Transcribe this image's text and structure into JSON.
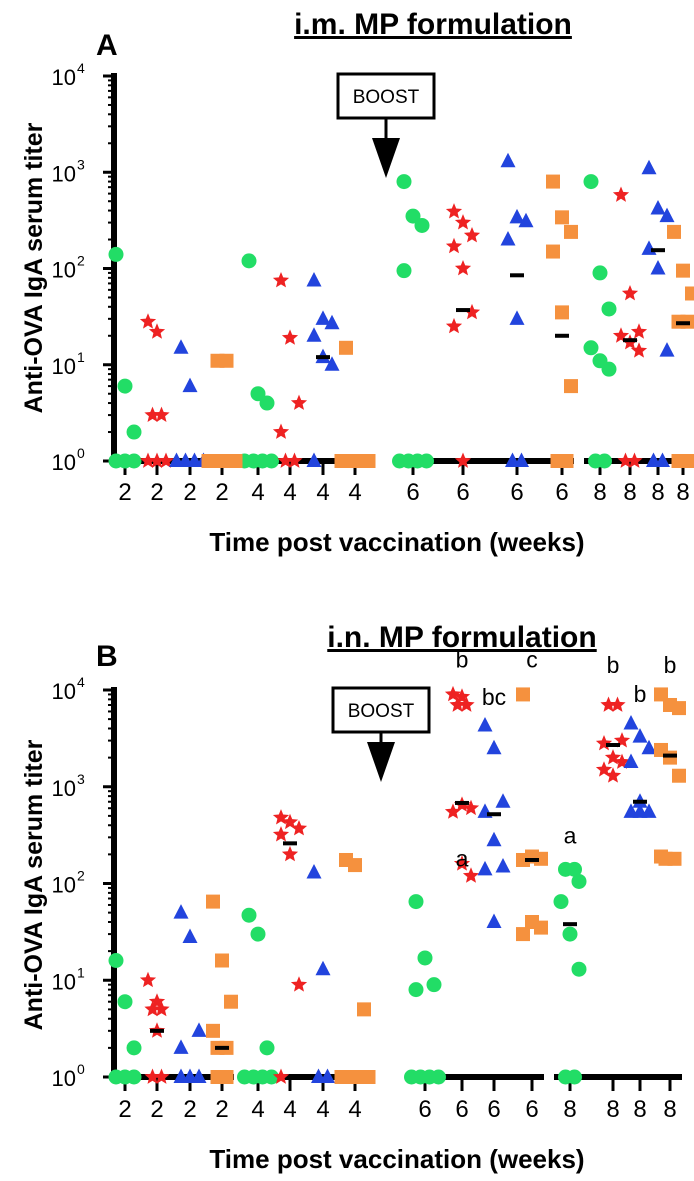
{
  "chart_data": [
    {
      "type": "scatter",
      "panel_label": "A",
      "title": "i.m. MP formulation",
      "ylabel": "Anti-OVA IgA serum titer",
      "xlabel": "Time post vaccination (weeks)",
      "y_scale": "log",
      "ylim": [
        1,
        10000
      ],
      "y_ticks": [
        {
          "base": "10",
          "exp": "0"
        },
        {
          "base": "10",
          "exp": "1"
        },
        {
          "base": "10",
          "exp": "2"
        },
        {
          "base": "10",
          "exp": "3"
        },
        {
          "base": "10",
          "exp": "4"
        }
      ],
      "x_tick_labels": [
        "2",
        "2",
        "2",
        "2",
        "4",
        "4",
        "4",
        "4",
        "6",
        "6",
        "6",
        "6",
        "8",
        "8",
        "8",
        "8"
      ],
      "annotation": {
        "label": "BOOST",
        "between": [
          "4",
          "6"
        ]
      },
      "colors": {
        "circle": "#22dd66",
        "star": "#ee2222",
        "triangle": "#2244dd",
        "square": "#f5913e",
        "median": "#000000"
      },
      "series": [
        {
          "marker": "circle",
          "color": "#22dd66",
          "points": [
            {
              "week": 2,
              "values": [
                140,
                6,
                2,
                1,
                1,
                1
              ]
            },
            {
              "week": 4,
              "values": [
                120,
                5,
                4,
                1,
                1,
                1,
                1
              ]
            },
            {
              "week": 6,
              "values": [
                800,
                350,
                280,
                95,
                1,
                1,
                1,
                1
              ]
            },
            {
              "week": 8,
              "values": [
                800,
                90,
                38,
                15,
                11,
                9,
                1,
                1
              ]
            }
          ],
          "medians": [
            null,
            null,
            null,
            null
          ]
        },
        {
          "marker": "star",
          "color": "#ee2222",
          "points": [
            {
              "week": 2,
              "values": [
                28,
                22,
                3,
                3,
                1,
                1,
                1
              ]
            },
            {
              "week": 4,
              "values": [
                75,
                19,
                4,
                2,
                1,
                1
              ]
            },
            {
              "week": 6,
              "values": [
                390,
                300,
                220,
                170,
                100,
                35,
                25,
                1
              ]
            },
            {
              "week": 8,
              "values": [
                580,
                55,
                22,
                20,
                17,
                14,
                1,
                1
              ]
            }
          ],
          "medians": [
            null,
            null,
            37,
            18
          ]
        },
        {
          "marker": "triangle",
          "color": "#2244dd",
          "points": [
            {
              "week": 2,
              "values": [
                15,
                6,
                1,
                1,
                1,
                1
              ]
            },
            {
              "week": 4,
              "values": [
                75,
                30,
                27,
                20,
                12,
                10,
                1
              ]
            },
            {
              "week": 6,
              "values": [
                1300,
                340,
                310,
                200,
                30,
                1,
                1
              ]
            },
            {
              "week": 8,
              "values": [
                1100,
                420,
                350,
                160,
                100,
                14,
                1,
                1
              ]
            }
          ],
          "medians": [
            null,
            12,
            85,
            155
          ]
        },
        {
          "marker": "square",
          "color": "#f5913e",
          "points": [
            {
              "week": 2,
              "values": [
                11,
                11,
                1,
                1,
                1,
                1
              ]
            },
            {
              "week": 4,
              "values": [
                15,
                1,
                1,
                1,
                1
              ]
            },
            {
              "week": 6,
              "values": [
                800,
                340,
                240,
                150,
                35,
                6,
                1,
                1
              ]
            },
            {
              "week": 8,
              "values": [
                240,
                95,
                55,
                28,
                28,
                1,
                1
              ]
            }
          ],
          "medians": [
            null,
            null,
            20,
            27
          ]
        }
      ],
      "letters": []
    },
    {
      "type": "scatter",
      "panel_label": "B",
      "title": "i.n. MP formulation",
      "ylabel": "Anti-OVA IgA serum titer",
      "xlabel": "Time post vaccination (weeks)",
      "y_scale": "log",
      "ylim": [
        1,
        10000
      ],
      "y_ticks": [
        {
          "base": "10",
          "exp": "0"
        },
        {
          "base": "10",
          "exp": "1"
        },
        {
          "base": "10",
          "exp": "2"
        },
        {
          "base": "10",
          "exp": "3"
        },
        {
          "base": "10",
          "exp": "4"
        }
      ],
      "x_tick_labels": [
        "2",
        "2",
        "2",
        "2",
        "4",
        "4",
        "4",
        "4",
        "6",
        "6",
        "6",
        "6",
        "8",
        "8",
        "8",
        "8"
      ],
      "annotation": {
        "label": "BOOST",
        "between": [
          "4",
          "6"
        ]
      },
      "colors": {
        "circle": "#22dd66",
        "star": "#ee2222",
        "triangle": "#2244dd",
        "square": "#f5913e",
        "median": "#000000"
      },
      "series": [
        {
          "marker": "circle",
          "color": "#22dd66",
          "points": [
            {
              "week": 2,
              "values": [
                16,
                6,
                2,
                1,
                1,
                1
              ]
            },
            {
              "week": 4,
              "values": [
                47,
                30,
                2,
                1,
                1,
                1,
                1
              ]
            },
            {
              "week": 6,
              "values": [
                65,
                17,
                9,
                8,
                1,
                1,
                1,
                1
              ]
            },
            {
              "week": 8,
              "values": [
                140,
                140,
                105,
                65,
                30,
                13,
                1,
                1
              ]
            }
          ],
          "medians": [
            null,
            null,
            null,
            38
          ]
        },
        {
          "marker": "star",
          "color": "#ee2222",
          "points": [
            {
              "week": 2,
              "values": [
                10,
                6,
                5,
                5,
                3,
                1,
                1
              ]
            },
            {
              "week": 4,
              "values": [
                480,
                430,
                370,
                320,
                200,
                9,
                1
              ]
            },
            {
              "week": 6,
              "values": [
                9000,
                8500,
                7000,
                7000,
                650,
                600,
                550,
                160,
                120
              ]
            },
            {
              "week": 8,
              "values": [
                7000,
                7000,
                3000,
                2800,
                2000,
                1800,
                1500,
                1300
              ]
            }
          ],
          "medians": [
            3,
            260,
            680,
            2700
          ]
        },
        {
          "marker": "triangle",
          "color": "#2244dd",
          "points": [
            {
              "week": 2,
              "values": [
                50,
                28,
                3,
                2,
                1,
                1,
                1
              ]
            },
            {
              "week": 4,
              "values": [
                130,
                13,
                1,
                1
              ]
            },
            {
              "week": 6,
              "values": [
                4300,
                2500,
                700,
                550,
                280,
                150,
                140,
                40
              ]
            },
            {
              "week": 8,
              "values": [
                4500,
                3300,
                2500,
                1800,
                700,
                550,
                550,
                550
              ]
            }
          ],
          "medians": [
            null,
            null,
            520,
            700
          ]
        },
        {
          "marker": "square",
          "color": "#f5913e",
          "points": [
            {
              "week": 2,
              "values": [
                65,
                16,
                6,
                3,
                2,
                2,
                1,
                1
              ]
            },
            {
              "week": 4,
              "values": [
                175,
                155,
                5,
                1,
                1,
                1,
                1
              ]
            },
            {
              "week": 6,
              "values": [
                9000,
                190,
                180,
                175,
                40,
                35,
                30
              ]
            },
            {
              "week": 8,
              "values": [
                9000,
                7000,
                6500,
                2400,
                2000,
                1300,
                190,
                180,
                180
              ]
            }
          ],
          "medians": [
            2,
            null,
            175,
            2100
          ]
        }
      ],
      "letters": [
        {
          "text": "b",
          "series": "star",
          "week": 6,
          "y": 17000
        },
        {
          "text": "c",
          "series": "square",
          "week": 6,
          "y": 17000
        },
        {
          "text": "bc",
          "series": "triangle",
          "week": 6,
          "y": 7000
        },
        {
          "text": "a",
          "series": "star",
          "week": 6,
          "y": 150
        },
        {
          "text": "a",
          "series": "circle",
          "week": 8,
          "y": 260
        },
        {
          "text": "b",
          "series": "star",
          "week": 8,
          "y": 15000
        },
        {
          "text": "b",
          "series": "square",
          "week": 8,
          "y": 15000
        },
        {
          "text": "b",
          "series": "triangle",
          "week": 8,
          "y": 7500
        }
      ]
    }
  ]
}
